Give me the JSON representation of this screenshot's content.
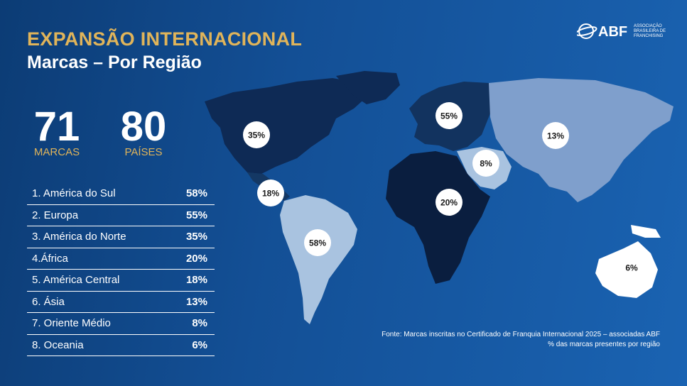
{
  "header": {
    "title": "EXPANSÃO INTERNACIONAL",
    "subtitle": "Marcas – Por Região"
  },
  "logo": {
    "brand": "ABF",
    "line1": "ASSOCIAÇÃO",
    "line2": "BRASILEIRA DE",
    "line3": "FRANCHISING"
  },
  "stats": {
    "brands_value": "71",
    "brands_label": "MARCAS",
    "countries_value": "80",
    "countries_label": "PAÍSES"
  },
  "colors": {
    "title_gold": "#e0b45a",
    "background": "#134f95",
    "region_dark": "#0a1e3f",
    "region_mid": "#12335f",
    "region_light": "#a9c3e0",
    "badge": "#ffffff"
  },
  "chart_data": {
    "type": "table",
    "categories": [
      "1. América do Sul",
      "2. Europa",
      "3. América do Norte",
      "4.África",
      "5. América Central",
      "6. Ásia",
      "7. Oriente Médio",
      "8. Oceania"
    ],
    "values": [
      58,
      55,
      35,
      20,
      18,
      13,
      8,
      6
    ],
    "value_labels": [
      "58%",
      "55%",
      "35%",
      "20%",
      "18%",
      "13%",
      "8%",
      "6%"
    ]
  },
  "map_labels": {
    "north_america": "35%",
    "central_america": "18%",
    "south_america": "58%",
    "europe": "55%",
    "middle_east": "8%",
    "africa": "20%",
    "asia": "13%",
    "oceania": "6%"
  },
  "footer": {
    "source_line1": "Fonte: Marcas inscritas no Certificado de Franquia Internacional 2025 – associadas ABF",
    "source_line2": "% das marcas presentes por região"
  }
}
